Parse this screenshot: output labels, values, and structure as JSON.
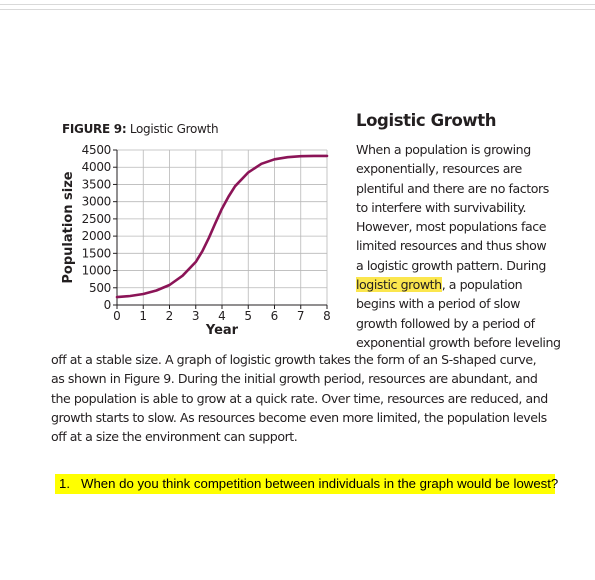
{
  "figure": {
    "label": "FIGURE 9:",
    "title": "Logistic Growth"
  },
  "chart_data": {
    "type": "line",
    "title": "Logistic Growth",
    "xlabel": "Year",
    "ylabel": "Population size",
    "x_ticks": [
      "0",
      "1",
      "2",
      "3",
      "4",
      "5",
      "6",
      "7",
      "8"
    ],
    "y_ticks": [
      "0",
      "500",
      "1000",
      "1500",
      "2000",
      "2500",
      "3000",
      "3500",
      "4000",
      "4500"
    ],
    "xlim": [
      0,
      8
    ],
    "ylim": [
      0,
      4500
    ],
    "grid": true,
    "series": [
      {
        "color": "#8b1457",
        "x": [
          0,
          0.5,
          1,
          1.5,
          2,
          2.5,
          3,
          3.25,
          3.5,
          3.75,
          4,
          4.25,
          4.5,
          5,
          5.5,
          6,
          6.5,
          7,
          7.5,
          8
        ],
        "y": [
          230,
          260,
          320,
          420,
          580,
          850,
          1250,
          1560,
          1950,
          2380,
          2800,
          3150,
          3450,
          3850,
          4100,
          4230,
          4290,
          4320,
          4330,
          4330
        ]
      }
    ]
  },
  "article": {
    "heading": "Logistic Growth",
    "side_lines": [
      "When a population is growing",
      "exponentially, resources are",
      "plentiful and there are no factors",
      "to interfere with survivability.",
      "However, most populations face",
      "limited resources and thus show",
      "a logistic growth pattern. During",
      "",
      "begins with a period of slow",
      "growth followed by a period of",
      "exponential growth before leveling"
    ],
    "highlight_term": "logistic growth",
    "highlight_rest": ", a population",
    "full_lines": [
      "off at a stable size. A graph of logistic growth takes the form of an S-shaped curve,",
      "as shown in Figure 9. During the initial growth period, resources are abundant, and",
      "the population is able to grow at a quick rate. Over time, resources are reduced, and",
      "growth starts to slow. As resources become even more limited, the population levels",
      "off at a size the environment can support."
    ]
  },
  "question": {
    "number": "1.",
    "text": "When do you think competition between individuals in the graph would be lowest?"
  }
}
